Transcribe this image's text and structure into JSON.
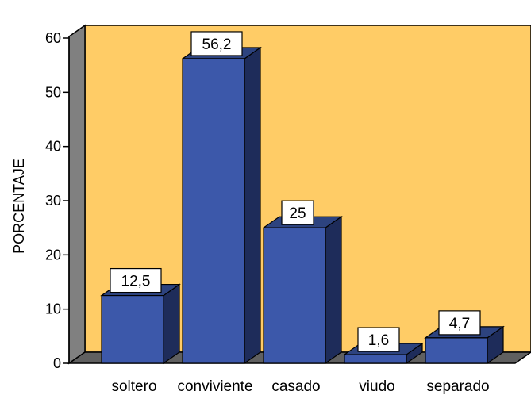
{
  "chart_data": {
    "type": "bar",
    "categories": [
      "soltero",
      "conviviente",
      "casado",
      "viudo",
      "separado"
    ],
    "values": [
      12.5,
      56.2,
      25,
      1.6,
      4.7
    ],
    "data_labels": [
      "12,5",
      "56,2",
      "25",
      "1,6",
      "4,7"
    ],
    "ylabel": "PORCENTAJE",
    "xlabel": "",
    "ylim": [
      0,
      60
    ],
    "yticks": [
      0,
      10,
      20,
      30,
      40,
      50,
      60
    ],
    "grid": false,
    "style": "3d",
    "colors": {
      "bar_front": "#3c58aa",
      "bar_side": "#1e2c5a",
      "bar_top": "#2d437f",
      "back_wall": "#ffcc66",
      "left_wall": "#808080",
      "floor": "#606060",
      "label_box": "#ffffff"
    }
  }
}
